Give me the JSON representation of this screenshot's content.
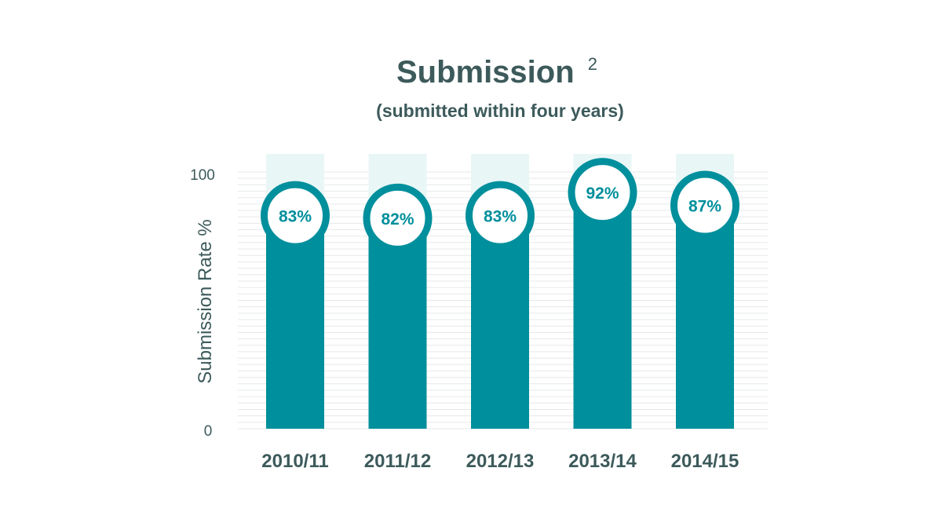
{
  "chart_data": {
    "type": "bar",
    "title": "Submission",
    "title_superscript": "2",
    "subtitle": "(submitted within four years)",
    "ylabel": "Submission Rate %",
    "xlabel": "",
    "ylim": [
      0,
      100
    ],
    "y_tick_labels": [
      "0",
      "100"
    ],
    "categories": [
      "2010/11",
      "2011/12",
      "2012/13",
      "2013/14",
      "2014/15"
    ],
    "values": [
      83,
      82,
      83,
      92,
      87
    ],
    "value_labels": [
      "83%",
      "82%",
      "83%",
      "92%",
      "87%"
    ],
    "grid": true,
    "legend": "none"
  },
  "colors": {
    "bar": "#008f9c",
    "bar_background": "#e9f6f6",
    "circle_fill": "#ffffff",
    "circle_stroke": "#008f9c",
    "value_text": "#008f9c",
    "text": "#3d5a5b",
    "grid": "#e6e9ea"
  }
}
